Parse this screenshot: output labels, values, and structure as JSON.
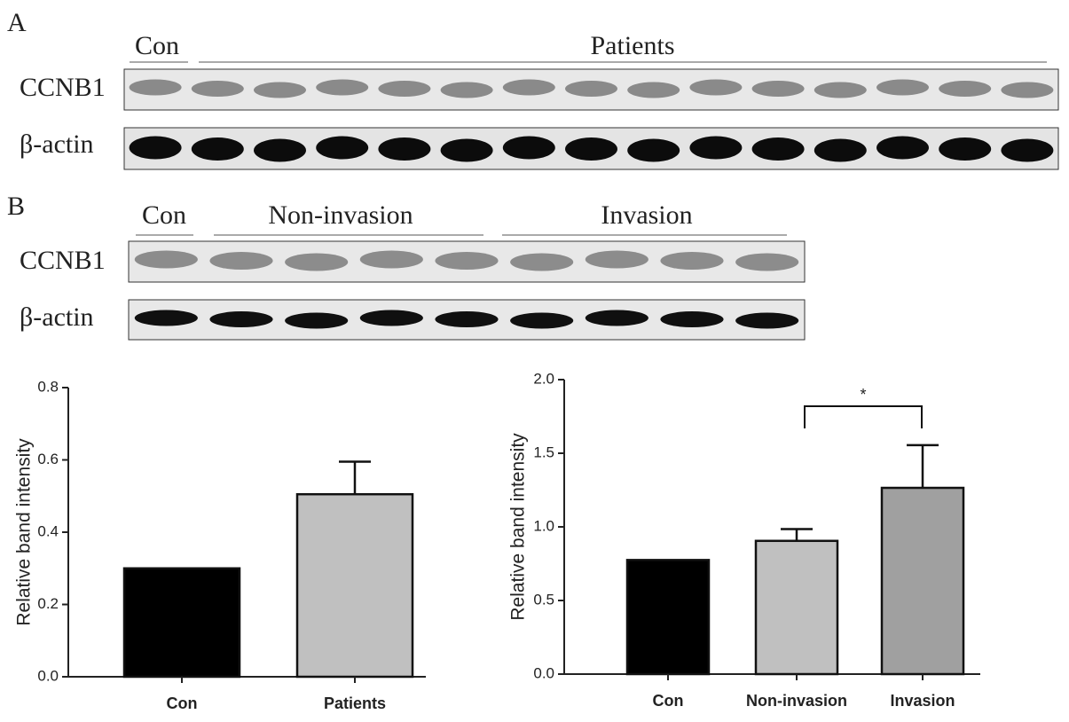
{
  "blots": [
    {
      "label": "A",
      "groups": [
        "Con",
        "Patients"
      ],
      "rows": [
        "CCNB1",
        "β-actin"
      ]
    },
    {
      "label": "B",
      "groups": [
        "Con",
        "Non-invasion",
        "Invasion"
      ],
      "rows": [
        "CCNB1",
        "β-actin"
      ]
    }
  ],
  "chart_data": [
    {
      "type": "bar",
      "y_label": "Relative band intensity",
      "categories": [
        "Con",
        "Patients"
      ],
      "values": [
        0.3,
        0.505
      ],
      "errors": [
        null,
        0.09
      ],
      "colors": [
        "#000000",
        "#c0c0c0"
      ],
      "ylim": [
        0,
        0.8
      ],
      "yticks": [
        {
          "value": 0,
          "label": "0.0"
        },
        0.2,
        0.4,
        0.6,
        0.8
      ]
    },
    {
      "type": "bar",
      "y_label": "Relative band intensity",
      "categories": [
        "Con",
        "Non-invasion",
        "Invasion"
      ],
      "values": [
        0.775,
        0.905,
        1.265
      ],
      "errors": [
        null,
        0.08,
        0.29
      ],
      "colors": [
        "#000000",
        "#c0c0c0",
        "#a0a0a0"
      ],
      "ylim": [
        0,
        2
      ],
      "yticks": [
        {
          "value": 0,
          "label": "0.0"
        },
        0.5,
        {
          "value": 1,
          "label": "1.0"
        },
        1.5,
        {
          "value": 2,
          "label": "2.0"
        }
      ],
      "annotation": "*"
    }
  ]
}
